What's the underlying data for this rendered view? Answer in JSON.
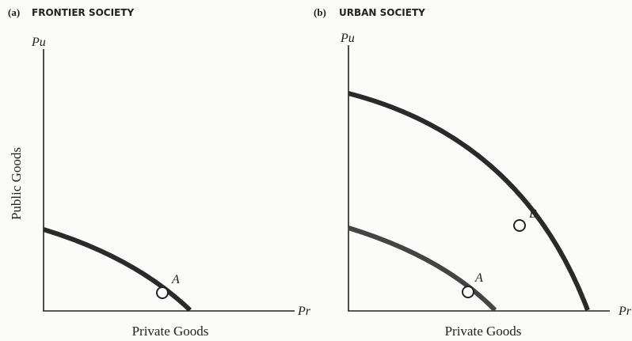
{
  "y_label": "Public Goods",
  "panels": [
    {
      "label": "(a)",
      "title": "FRONTIER SOCIETY",
      "y_axis": "Pu",
      "x_axis": "Pr",
      "x_label": "Private Goods",
      "points": [
        "A"
      ]
    },
    {
      "label": "(b)",
      "title": "URBAN SOCIETY",
      "y_axis": "Pu",
      "x_axis": "Pr",
      "x_label": "Private Goods",
      "points": [
        "B",
        "A"
      ]
    }
  ]
}
